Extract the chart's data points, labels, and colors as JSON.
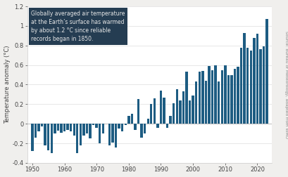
{
  "years": [
    1950,
    1951,
    1952,
    1953,
    1954,
    1955,
    1956,
    1957,
    1958,
    1959,
    1960,
    1961,
    1962,
    1963,
    1964,
    1965,
    1966,
    1967,
    1968,
    1969,
    1970,
    1971,
    1972,
    1973,
    1974,
    1975,
    1976,
    1977,
    1978,
    1979,
    1980,
    1981,
    1982,
    1983,
    1984,
    1985,
    1986,
    1987,
    1988,
    1989,
    1990,
    1991,
    1992,
    1993,
    1994,
    1995,
    1996,
    1997,
    1998,
    1999,
    2000,
    2001,
    2002,
    2003,
    2004,
    2005,
    2006,
    2007,
    2008,
    2009,
    2010,
    2011,
    2012,
    2013,
    2014,
    2015,
    2016,
    2017,
    2018,
    2019,
    2020,
    2021,
    2022,
    2023
  ],
  "anomalies": [
    -0.28,
    -0.14,
    -0.08,
    -0.03,
    -0.22,
    -0.27,
    -0.3,
    -0.1,
    -0.07,
    -0.09,
    -0.08,
    -0.06,
    -0.08,
    -0.12,
    -0.3,
    -0.22,
    -0.12,
    -0.1,
    -0.15,
    -0.01,
    -0.04,
    -0.2,
    -0.1,
    -0.0,
    -0.22,
    -0.19,
    -0.24,
    -0.05,
    -0.08,
    -0.01,
    0.08,
    0.1,
    -0.06,
    0.25,
    -0.14,
    -0.1,
    0.05,
    0.2,
    0.26,
    -0.04,
    0.34,
    0.27,
    -0.04,
    0.08,
    0.21,
    0.35,
    0.24,
    0.33,
    0.53,
    0.24,
    0.29,
    0.43,
    0.53,
    0.54,
    0.44,
    0.59,
    0.55,
    0.6,
    0.43,
    0.55,
    0.6,
    0.5,
    0.5,
    0.56,
    0.58,
    0.78,
    0.93,
    0.78,
    0.75,
    0.88,
    0.92,
    0.76,
    0.79,
    1.07
  ],
  "bar_color": "#1d5c82",
  "ylabel": "Temperature anomaly (°C)",
  "ylim": [
    -0.4,
    1.2
  ],
  "ytick_vals": [
    -0.4,
    -0.2,
    0.0,
    0.2,
    0.4,
    0.6,
    0.8,
    1.0,
    1.2
  ],
  "ytick_labels": [
    "-0.4",
    "-0.2",
    "0",
    "0.2",
    "0.4",
    "0.6",
    "0.8",
    "1",
    "1.2"
  ],
  "xlim": [
    1948.5,
    2024.5
  ],
  "xticks": [
    1950,
    1960,
    1970,
    1980,
    1990,
    2000,
    2010,
    2020
  ],
  "annotation_text": "Globally averaged air temperature\nat the Earth’s surface has warmed\nby about 1.2 °C since reliable\nrecords began in 1850.",
  "annotation_box_color": "#253d52",
  "annotation_text_color": "#e8e8e8",
  "source_text": "Source: Bureau of Meteorology, adapted from WMO",
  "background_color": "#f0efed",
  "plot_background": "#ffffff",
  "spine_color": "#cccccc"
}
